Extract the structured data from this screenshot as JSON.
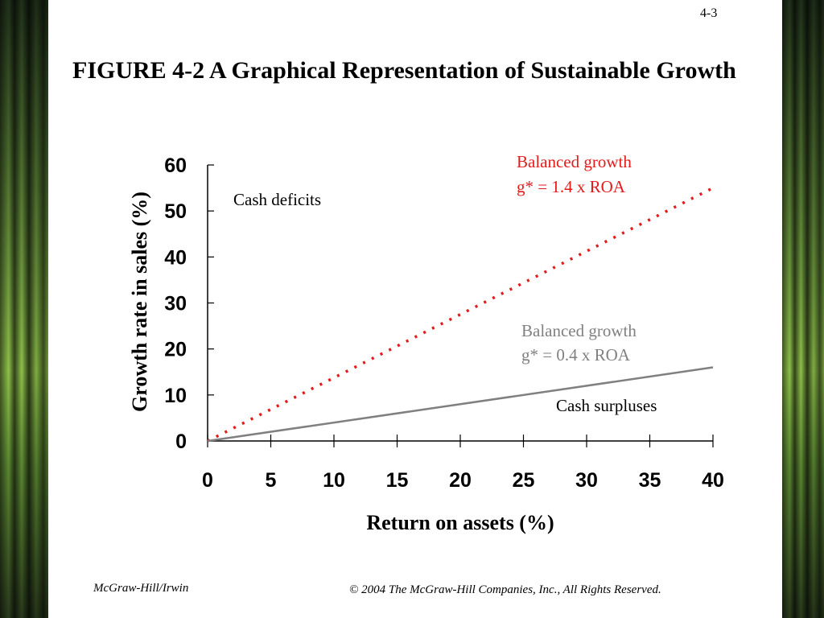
{
  "slide": {
    "number": "4-3",
    "title": "FIGURE 4-2 A Graphical Representation of Sustainable Growth",
    "footer_left": "McGraw-Hill/Irwin",
    "footer_right": "© 2004 The McGraw-Hill Companies, Inc., All Rights Reserved."
  },
  "chart_data": {
    "type": "line",
    "xlabel": "Return on assets (%)",
    "ylabel": "Growth rate in sales (%)",
    "xlim": [
      0,
      40
    ],
    "ylim": [
      0,
      60
    ],
    "x_ticks": [
      0,
      5,
      10,
      15,
      20,
      25,
      30,
      35,
      40
    ],
    "y_ticks": [
      0,
      10,
      20,
      30,
      40,
      50,
      60
    ],
    "grid": false,
    "series": [
      {
        "line1": "Balanced growth",
        "line2": "g* = 1.4 x ROA",
        "x": [
          0,
          40
        ],
        "y": [
          0,
          55
        ],
        "color": "#e31b1b",
        "style": "dotted"
      },
      {
        "line1": "Balanced growth",
        "line2": "g* = 0.4 x ROA",
        "x": [
          0,
          40
        ],
        "y": [
          0,
          16
        ],
        "color": "#808080",
        "style": "solid"
      }
    ],
    "annotations": [
      {
        "text": "Cash deficits"
      },
      {
        "text": "Cash surpluses"
      }
    ]
  }
}
